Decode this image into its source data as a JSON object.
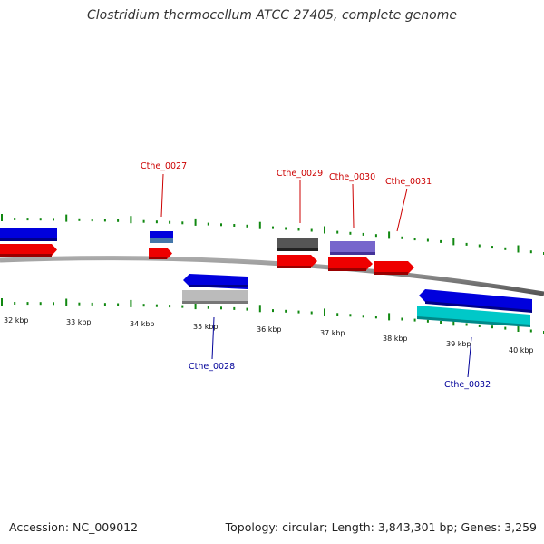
{
  "title": "Clostridium thermocellum ATCC 27405, complete genome",
  "footer": {
    "accession": "Accession: NC_009012",
    "summary": "Topology: circular; Length: 3,843,301 bp; Genes: 3,259"
  },
  "colors": {
    "forward_label": "#cc0000",
    "reverse_label": "#000099",
    "red": "#ee0000",
    "blue": "#0000dd",
    "steel": "#4477aa",
    "dark_gray": "#555555",
    "light_gray": "#bbbbbb",
    "purple": "#7766cc",
    "cyan": "#00c8c8",
    "tick": "#118811"
  },
  "kbp_labels": [
    "32 kbp",
    "33 kbp",
    "34 kbp",
    "35 kbp",
    "36 kbp",
    "37 kbp",
    "38 kbp",
    "39 kbp",
    "40 kbp"
  ],
  "gene_labels": [
    {
      "id": "Cthe_0027",
      "strand": "forward"
    },
    {
      "id": "Cthe_0028",
      "strand": "reverse"
    },
    {
      "id": "Cthe_0029",
      "strand": "forward"
    },
    {
      "id": "Cthe_0030",
      "strand": "forward"
    },
    {
      "id": "Cthe_0031",
      "strand": "forward"
    },
    {
      "id": "Cthe_0032",
      "strand": "reverse"
    }
  ]
}
